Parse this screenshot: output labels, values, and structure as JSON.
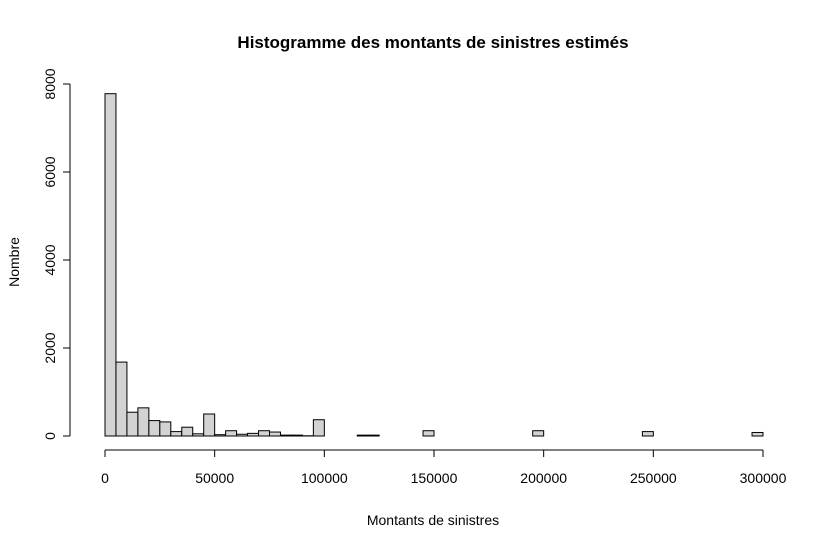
{
  "chart_data": {
    "type": "bar",
    "title": "Histogramme des montants de sinistres estimés",
    "xlabel": "Montants de sinistres",
    "ylabel": "Nombre",
    "xlim": [
      0,
      300000
    ],
    "ylim": [
      0,
      8000
    ],
    "bin_width": 5000,
    "x_ticks": [
      "0",
      "50000",
      "100000",
      "150000",
      "200000",
      "250000",
      "300000"
    ],
    "x_tick_values": [
      0,
      50000,
      100000,
      150000,
      200000,
      250000,
      300000
    ],
    "y_ticks": [
      "0",
      "2000",
      "4000",
      "6000",
      "8000"
    ],
    "y_tick_values": [
      0,
      2000,
      4000,
      6000,
      8000
    ],
    "bin_starts": [
      0,
      5000,
      10000,
      15000,
      20000,
      25000,
      30000,
      35000,
      40000,
      45000,
      50000,
      55000,
      60000,
      65000,
      70000,
      75000,
      80000,
      85000,
      90000,
      95000,
      100000,
      105000,
      110000,
      115000,
      120000,
      125000,
      130000,
      135000,
      140000,
      145000,
      150000,
      155000,
      160000,
      165000,
      170000,
      175000,
      180000,
      185000,
      190000,
      195000,
      200000,
      205000,
      210000,
      215000,
      220000,
      225000,
      230000,
      235000,
      240000,
      245000,
      250000,
      255000,
      260000,
      265000,
      270000,
      275000,
      280000,
      285000,
      290000,
      295000
    ],
    "counts": [
      7780,
      1680,
      540,
      640,
      350,
      320,
      100,
      200,
      50,
      500,
      30,
      120,
      40,
      60,
      120,
      90,
      20,
      20,
      5,
      370,
      0,
      0,
      0,
      20,
      20,
      0,
      0,
      0,
      0,
      120,
      0,
      0,
      0,
      0,
      0,
      0,
      0,
      0,
      0,
      120,
      0,
      0,
      0,
      0,
      0,
      0,
      0,
      0,
      0,
      100,
      0,
      0,
      0,
      0,
      0,
      0,
      0,
      0,
      0,
      80
    ],
    "bar_color": "#d3d3d3",
    "border_color": "#000000",
    "grid": false
  }
}
